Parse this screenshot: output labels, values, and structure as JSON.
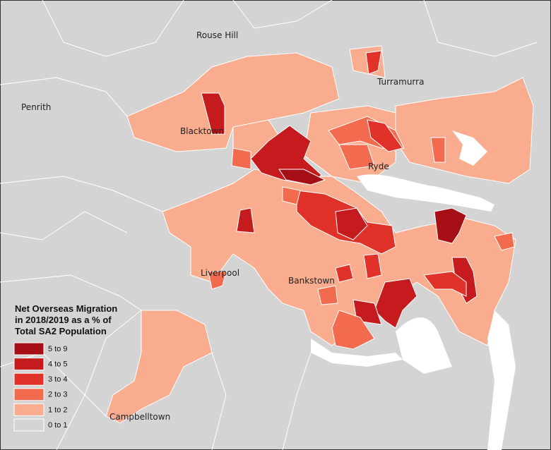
{
  "map": {
    "places": [
      {
        "name": "Rouse Hill"
      },
      {
        "name": "Turramurra"
      },
      {
        "name": "Penrith"
      },
      {
        "name": "Blacktown"
      },
      {
        "name": "Ryde"
      },
      {
        "name": "Liverpool"
      },
      {
        "name": "Bankstown"
      },
      {
        "name": "Campbelltown"
      }
    ],
    "legend": {
      "title_lines": [
        "Net Overseas Migration",
        "in 2018/2019 as a % of",
        "Total SA2 Population"
      ],
      "items": [
        {
          "label": "5  to  9",
          "color": "#a50f15"
        },
        {
          "label": "4  to  5",
          "color": "#c51b1f"
        },
        {
          "label": "3  to  4",
          "color": "#e03229"
        },
        {
          "label": "2  to  3",
          "color": "#f26b4f"
        },
        {
          "label": "1  to  2",
          "color": "#f9ac8e"
        },
        {
          "label": "0  to  1",
          "color": "#d4d4d4"
        }
      ]
    }
  }
}
